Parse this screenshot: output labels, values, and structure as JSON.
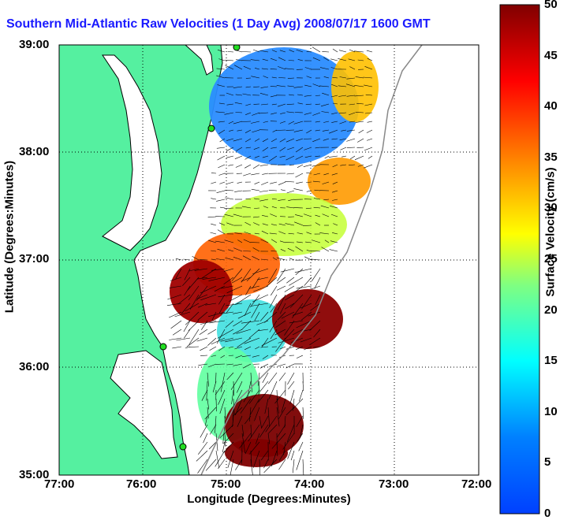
{
  "map": {
    "title": "Southern Mid-Atlantic Raw Velocities (1 Day Avg) 2008/07/17 1600 GMT",
    "xlabel": "Longitude (Degrees:Minutes)",
    "ylabel": "Latitude (Degrees:Minutes)",
    "x_ticks": [
      "77:00",
      "76:00",
      "75:00",
      "74:00",
      "73:00",
      "72:00"
    ],
    "y_ticks": [
      "39:00",
      "38:00",
      "37:00",
      "36:00",
      "35:00"
    ],
    "lon_range": [
      -77,
      -72
    ],
    "lat_range": [
      35,
      39
    ],
    "grid": true,
    "land_color": "#55f0a0",
    "coast_color": "#000000",
    "station_color": "#22dd22"
  },
  "colorbar": {
    "label": "Surface Velocity (cm/s)",
    "ticks": [
      "0",
      "5",
      "10",
      "15",
      "20",
      "25",
      "30",
      "35",
      "40",
      "45",
      "50"
    ],
    "range": [
      0,
      50
    ],
    "colormap": "jet",
    "placement": "right"
  }
}
